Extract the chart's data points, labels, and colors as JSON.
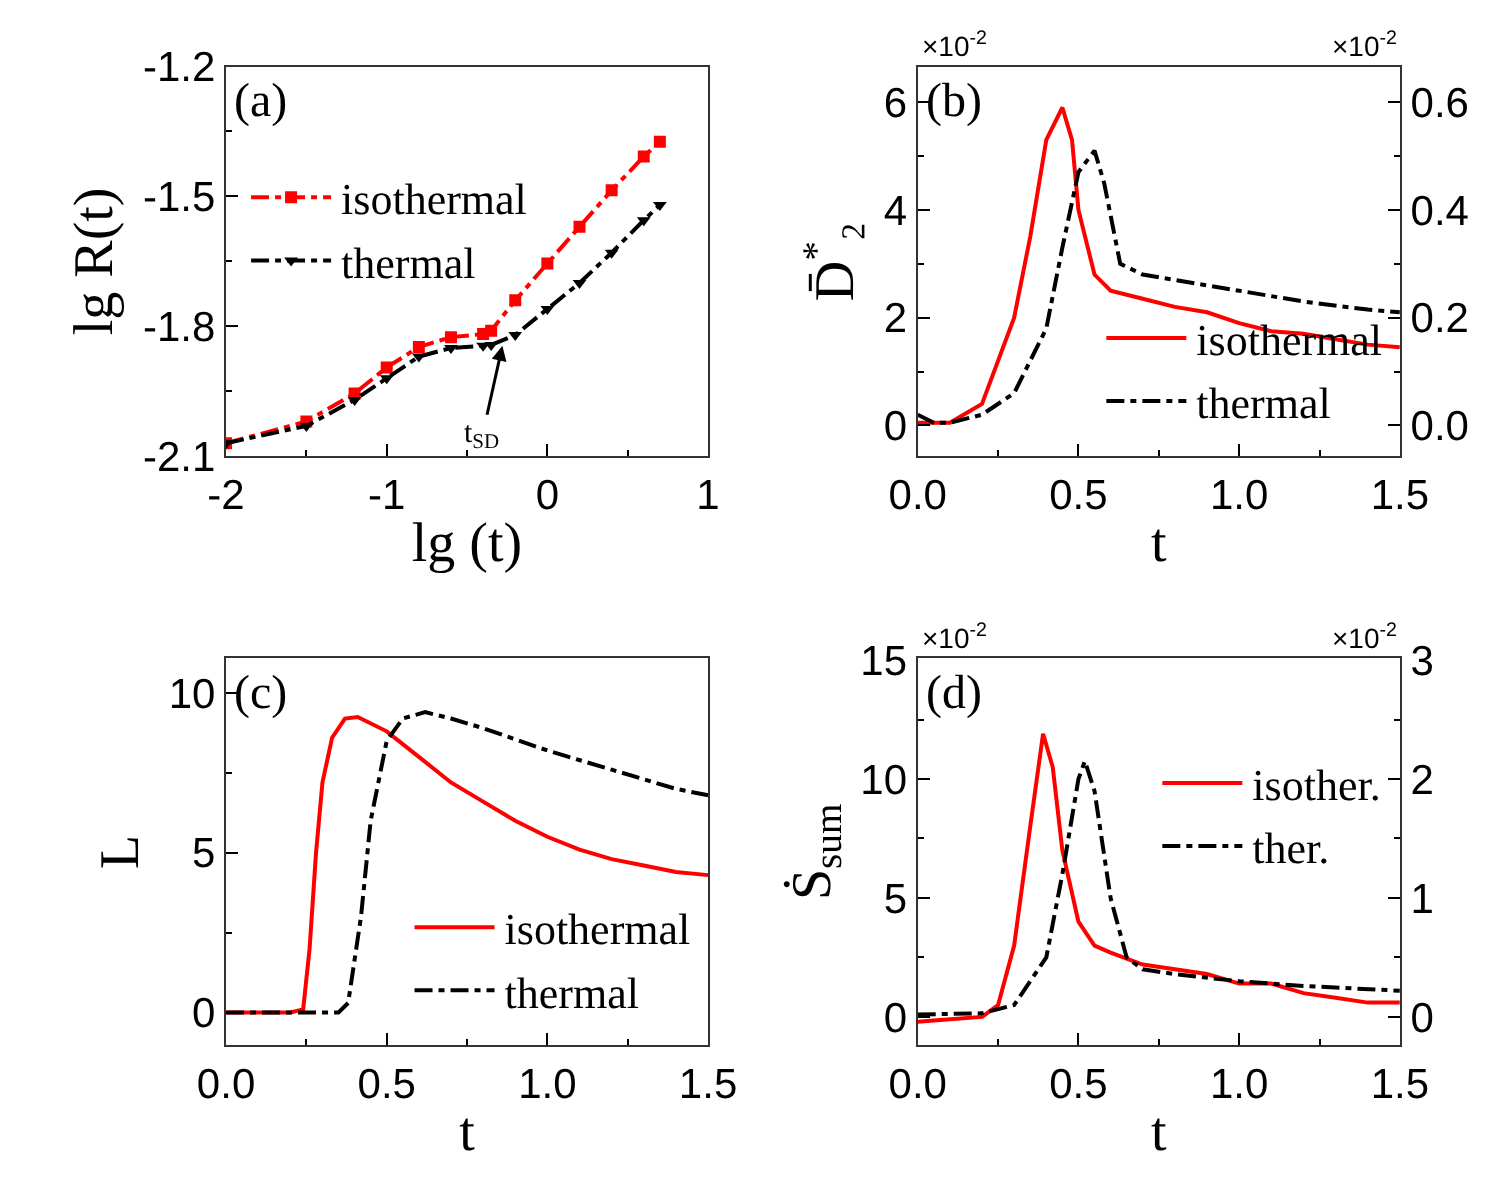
{
  "chart_data": [
    {
      "type": "line",
      "xlabel": "lg (t)",
      "ylabel": "lg R(t)",
      "legend": "top left",
      "annotations": [
        "(a)",
        {
          "text": "t$_{SD}$",
          "x": -0.28,
          "y": -1.845
        }
      ],
      "xlim": [
        -2,
        1
      ],
      "xticks": [
        -2,
        {
          "value": -1.5,
          "label": null
        },
        -1,
        {
          "value": -0.5,
          "label": null
        },
        0,
        {
          "value": 0.5,
          "label": null
        },
        1
      ],
      "ylim": [
        -2.1,
        -1.2
      ],
      "yticks": [
        -2.1,
        {
          "value": -1.95,
          "label": null
        },
        -1.8,
        {
          "value": -1.65,
          "label": null
        },
        -1.5,
        {
          "value": -1.35,
          "label": null
        },
        -1.2
      ],
      "x": [
        -2,
        -1.5,
        -1.2,
        -1,
        -0.8,
        -0.6,
        -0.4,
        -0.35,
        -0.2,
        0,
        0.2,
        0.4,
        0.6,
        0.7
      ],
      "series": [
        {
          "name": "isothermal",
          "color": "#ff0000",
          "marker": "square",
          "line_style": "dashdot",
          "values": [
            -2.07,
            -2.02,
            -1.955,
            -1.895,
            -1.848,
            -1.825,
            -1.818,
            -1.81,
            -1.74,
            -1.655,
            -1.57,
            -1.486,
            -1.408,
            -1.374
          ]
        },
        {
          "name": "thermal",
          "color": "#000000",
          "marker": "triangle",
          "line_style": "dashdot",
          "values": [
            -2.07,
            -2.03,
            -1.97,
            -1.92,
            -1.87,
            -1.85,
            -1.845,
            -1.843,
            -1.82,
            -1.76,
            -1.7,
            -1.63,
            -1.555,
            -1.52
          ]
        }
      ]
    },
    {
      "type": "line",
      "xlabel": "t",
      "ylabel": "D̄$^{*}$₂",
      "legend": "bottom right",
      "annotations": [
        "(b)",
        "×10$^{-2}$",
        "×10$^{-2}$"
      ],
      "xlim": [
        0,
        1.5
      ],
      "xticks": [
        {
          "value": 0,
          "label": "0.0"
        },
        {
          "value": 0.25,
          "label": null
        },
        {
          "value": 0.5,
          "label": "0.5"
        },
        {
          "value": 0.75,
          "label": null
        },
        {
          "value": 1,
          "label": "1.0"
        },
        {
          "value": 1.25,
          "label": null
        },
        {
          "value": 1.5,
          "label": "1.5"
        }
      ],
      "ylim": [
        -0.57,
        6.66
      ],
      "yticks": [
        0,
        {
          "value": 1,
          "label": null
        },
        2,
        {
          "value": 3,
          "label": null
        },
        4,
        {
          "value": 5,
          "label": null
        },
        6
      ],
      "y2lim": [
        -0.057,
        0.666
      ],
      "y2ticks": [
        {
          "value": 0,
          "label": "0.0"
        },
        {
          "value": 0.1,
          "label": null
        },
        {
          "value": 0.2,
          "label": "0.2"
        },
        {
          "value": 0.3,
          "label": null
        },
        {
          "value": 0.4,
          "label": "0.4"
        },
        {
          "value": 0.5,
          "label": null
        },
        {
          "value": 0.6,
          "label": "0.6"
        }
      ],
      "series": [
        {
          "name": "isothermal",
          "color": "#ff0000",
          "line_style": "solid",
          "x": [
            0,
            0.1,
            0.2,
            0.3,
            0.35,
            0.4,
            0.45,
            0.48,
            0.5,
            0.55,
            0.6,
            0.7,
            0.8,
            0.9,
            1.0,
            1.1,
            1.2,
            1.3,
            1.4,
            1.5
          ],
          "values": [
            0.05,
            0.05,
            0.4,
            2.0,
            3.5,
            5.3,
            5.9,
            5.3,
            4.0,
            2.8,
            2.5,
            2.35,
            2.2,
            2.1,
            1.9,
            1.75,
            1.7,
            1.6,
            1.5,
            1.45
          ]
        },
        {
          "name": "thermal",
          "color": "#000000",
          "line_style": "dashdot",
          "axis": "y2",
          "x": [
            0,
            0.05,
            0.1,
            0.2,
            0.3,
            0.4,
            0.45,
            0.5,
            0.55,
            0.58,
            0.63,
            0.7,
            0.8,
            1.0,
            1.2,
            1.4,
            1.5
          ],
          "values": [
            0.02,
            0.005,
            0.005,
            0.02,
            0.06,
            0.18,
            0.33,
            0.47,
            0.51,
            0.45,
            0.3,
            0.28,
            0.27,
            0.25,
            0.23,
            0.215,
            0.21
          ]
        }
      ]
    },
    {
      "type": "line",
      "xlabel": "t",
      "ylabel": "L",
      "legend": "bottom right",
      "annotations": [
        "(c)"
      ],
      "xlim": [
        0,
        1.5
      ],
      "xticks": [
        {
          "value": 0,
          "label": "0.0"
        },
        {
          "value": 0.25,
          "label": null
        },
        {
          "value": 0.5,
          "label": "0.5"
        },
        {
          "value": 0.75,
          "label": null
        },
        {
          "value": 1,
          "label": "1.0"
        },
        {
          "value": 1.25,
          "label": null
        },
        {
          "value": 1.5,
          "label": "1.5"
        }
      ],
      "ylim": [
        -1.03,
        11.09
      ],
      "yticks": [
        0,
        {
          "value": 2.5,
          "label": null
        },
        5,
        {
          "value": 7.5,
          "label": null
        },
        10
      ],
      "series": [
        {
          "name": "isothermal",
          "color": "#ff0000",
          "line_style": "solid",
          "x": [
            0,
            0.2,
            0.24,
            0.26,
            0.28,
            0.3,
            0.33,
            0.37,
            0.41,
            0.5,
            0.6,
            0.7,
            0.8,
            0.9,
            1.0,
            1.1,
            1.2,
            1.3,
            1.4,
            1.5
          ],
          "values": [
            0,
            0,
            0.1,
            2,
            5,
            7.2,
            8.6,
            9.2,
            9.25,
            8.8,
            8.0,
            7.2,
            6.6,
            6.0,
            5.5,
            5.1,
            4.8,
            4.6,
            4.4,
            4.3
          ]
        },
        {
          "name": "thermal",
          "color": "#000000",
          "line_style": "dashdot",
          "x": [
            0,
            0.35,
            0.38,
            0.42,
            0.45,
            0.5,
            0.55,
            0.62,
            0.7,
            0.8,
            1.0,
            1.2,
            1.4,
            1.5
          ],
          "values": [
            0,
            0,
            0.3,
            3,
            6,
            8.5,
            9.2,
            9.4,
            9.2,
            8.9,
            8.2,
            7.6,
            7.0,
            6.8
          ]
        }
      ]
    },
    {
      "type": "line",
      "xlabel": "t",
      "ylabel": "Ṡ$_{sum}$",
      "legend": "top right",
      "annotations": [
        "(d)",
        "×10$^{-2}$",
        "×10$^{-2}$"
      ],
      "xlim": [
        0,
        1.5
      ],
      "xticks": [
        {
          "value": 0,
          "label": "0.0"
        },
        {
          "value": 0.25,
          "label": null
        },
        {
          "value": 0.5,
          "label": "0.5"
        },
        {
          "value": 0.75,
          "label": null
        },
        {
          "value": 1,
          "label": "1.0"
        },
        {
          "value": 1.25,
          "label": null
        },
        {
          "value": 1.5,
          "label": "1.5"
        }
      ],
      "ylim": [
        -1.2,
        15.08
      ],
      "yticks": [
        0,
        {
          "value": 2.5,
          "label": null
        },
        5,
        {
          "value": 7.5,
          "label": null
        },
        10,
        {
          "value": 12.5,
          "label": null
        },
        15
      ],
      "y2lim": [
        -0.24,
        3.016
      ],
      "y2ticks": [
        0,
        {
          "value": 0.5,
          "label": null
        },
        1,
        {
          "value": 1.5,
          "label": null
        },
        2,
        {
          "value": 2.5,
          "label": null
        },
        3
      ],
      "series": [
        {
          "name": "isother.",
          "color": "#ff0000",
          "line_style": "solid",
          "x": [
            0,
            0.2,
            0.25,
            0.3,
            0.35,
            0.39,
            0.42,
            0.45,
            0.5,
            0.55,
            0.6,
            0.7,
            0.8,
            0.9,
            1.0,
            1.1,
            1.2,
            1.3,
            1.4,
            1.5
          ],
          "values": [
            -0.2,
            0,
            0.5,
            3,
            8,
            11.9,
            10.5,
            7,
            4,
            3,
            2.7,
            2.2,
            2.0,
            1.8,
            1.4,
            1.4,
            1.0,
            0.8,
            0.6,
            0.6
          ]
        },
        {
          "name": "ther.",
          "color": "#000000",
          "line_style": "dashdot",
          "axis": "y2",
          "x": [
            0,
            0.2,
            0.3,
            0.4,
            0.45,
            0.5,
            0.52,
            0.55,
            0.6,
            0.65,
            0.7,
            0.8,
            1.0,
            1.2,
            1.5
          ],
          "values": [
            0.02,
            0.03,
            0.1,
            0.5,
            1.2,
            2.0,
            2.15,
            1.9,
            1.0,
            0.5,
            0.4,
            0.36,
            0.3,
            0.26,
            0.22
          ]
        }
      ]
    }
  ]
}
